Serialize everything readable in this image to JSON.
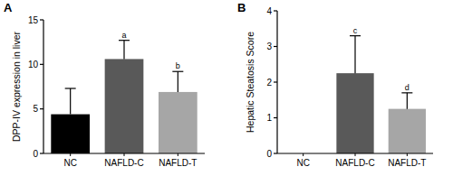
{
  "chart_data": [
    {
      "type": "bar",
      "title": "A",
      "y_label": "DPP-IV expression in liver",
      "categories": [
        "NC",
        "NAFLD-C",
        "NAFLD-T"
      ],
      "values": [
        4.4,
        10.6,
        6.9
      ],
      "errors": [
        2.9,
        2.1,
        2.3
      ],
      "colors": [
        "#000000",
        "#595959",
        "#a6a6a6"
      ],
      "annotations": [
        null,
        "a",
        "b"
      ],
      "ylim": [
        0,
        15
      ],
      "yticks": [
        0,
        5,
        10,
        15
      ],
      "grid": false
    },
    {
      "type": "bar",
      "title": "B",
      "y_label": "Hepatic Steatosis Score",
      "categories": [
        "NC",
        "NAFLD-C",
        "NAFLD-T"
      ],
      "values": [
        0,
        2.25,
        1.25
      ],
      "errors": [
        0,
        1.05,
        0.45
      ],
      "colors": [
        "#000000",
        "#595959",
        "#a6a6a6"
      ],
      "annotations": [
        null,
        "c",
        "d"
      ],
      "ylim": [
        0,
        4
      ],
      "yticks": [
        0,
        1,
        2,
        3,
        4
      ],
      "grid": false
    }
  ]
}
